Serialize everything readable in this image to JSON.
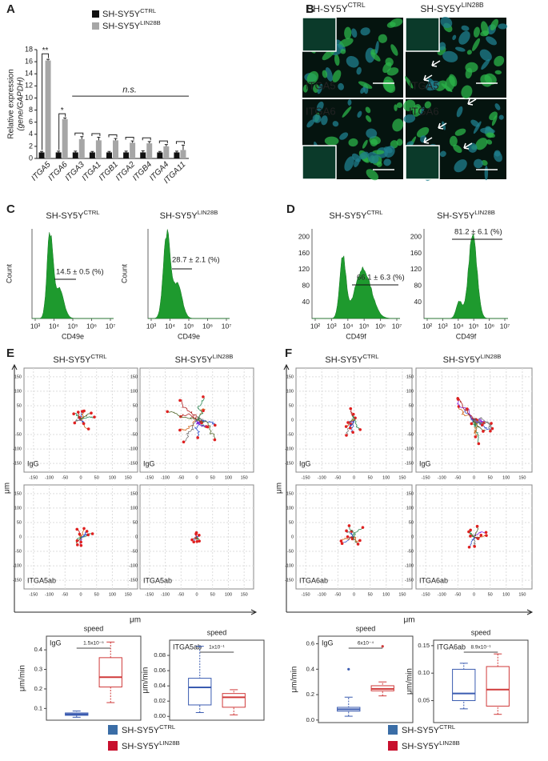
{
  "panel_labels": [
    "A",
    "B",
    "C",
    "D",
    "E",
    "F"
  ],
  "cell_lines": {
    "base": "SH-SY5Y",
    "ctrl": "CTRL",
    "lin": "LIN28B"
  },
  "panel_b": {
    "stains": [
      "ITGA5",
      "ITGA6"
    ]
  },
  "panel_c": {
    "ylabel": "Count",
    "xlabel": "CD49e",
    "xticks": [
      "10³",
      "10⁴",
      "10⁵",
      "10⁶",
      "10⁷"
    ],
    "percent": [
      "14.5 ± 0.5 (%)",
      "28.7 ± 2.1 (%)"
    ]
  },
  "panel_d": {
    "xlabel": "CD49f",
    "xticks": [
      "10²",
      "10³",
      "10⁴",
      "10⁵",
      "10⁶",
      "10⁷"
    ],
    "yticks": [
      40,
      80,
      120,
      160,
      200
    ],
    "percent": [
      "66.1 ± 6.3 (%)",
      "81.2 ± 6.1 (%)"
    ]
  },
  "tracks": {
    "axis_label": "μm",
    "ticks": [
      -150,
      -100,
      -50,
      0,
      50,
      100,
      150
    ],
    "treatments_e": [
      "IgG",
      "ITGA5ab"
    ],
    "treatments_f": [
      "IgG",
      "ITGA6ab"
    ]
  },
  "chart_data": [
    {
      "type": "bar",
      "ylabel": "Relative expression",
      "ylabel2": "(gene/GAPDH)",
      "categories": [
        "ITGA5",
        "ITGA6",
        "ITGA3",
        "ITGA1",
        "ITGB1",
        "ITGA2",
        "ITGB4",
        "ITGA4",
        "ITGA11"
      ],
      "series": [
        {
          "name": "SH-SY5Y",
          "superscript": "CTRL",
          "color": "#111111",
          "values": [
            1,
            1,
            1,
            1,
            1,
            1,
            1,
            1,
            1
          ],
          "errors": [
            0.15,
            0.2,
            0.2,
            0.15,
            0.15,
            0.2,
            0.25,
            0.15,
            0.2
          ]
        },
        {
          "name": "SH-SY5Y",
          "superscript": "LIN28B",
          "color": "#a6a6a6",
          "values": [
            16.2,
            6.5,
            3.2,
            3.0,
            3.0,
            2.6,
            2.5,
            2.0,
            1.4
          ],
          "errors": [
            0.2,
            0.2,
            0.4,
            0.5,
            0.3,
            0.3,
            0.3,
            0.3,
            0.8
          ]
        }
      ],
      "ylim": [
        0,
        18
      ],
      "yticks": [
        0,
        2,
        4,
        6,
        8,
        10,
        12,
        14,
        16,
        18
      ],
      "annotations": [
        "**",
        "*",
        "n.s."
      ]
    },
    {
      "type": "box",
      "title": "speed",
      "label": "IgG",
      "ylabel": "μm/min",
      "pvalue": "1.5x10⁻⁵",
      "ylim": [
        0.04,
        0.47
      ],
      "yticks": [
        0.1,
        0.2,
        0.3,
        0.4
      ],
      "series": [
        {
          "color": "#3a5bb0",
          "min": 0.055,
          "q1": 0.065,
          "median": 0.07,
          "q3": 0.077,
          "max": 0.087
        },
        {
          "color": "#d03a3a",
          "min": 0.13,
          "q1": 0.21,
          "median": 0.26,
          "q3": 0.36,
          "max": 0.44
        }
      ]
    },
    {
      "type": "box",
      "title": "speed",
      "label": "ITGA5ab",
      "ylabel": "μm/min",
      "pvalue": "1x10⁻¹",
      "ylim": [
        -0.005,
        0.1
      ],
      "yticks": [
        {
          "value": 0,
          "label": "0.00"
        },
        0.02,
        0.04,
        0.06,
        0.08
      ],
      "series": [
        {
          "color": "#3a5bb0",
          "min": 0.005,
          "q1": 0.015,
          "median": 0.038,
          "q3": 0.05,
          "max": 0.092
        },
        {
          "color": "#d03a3a",
          "min": 0.002,
          "q1": 0.012,
          "median": 0.025,
          "q3": 0.03,
          "max": 0.035
        }
      ]
    },
    {
      "type": "box",
      "title": "speed",
      "label": "IgG",
      "ylabel": "μm/min",
      "pvalue": "6x10⁻⁴",
      "ylim": [
        -0.02,
        0.66
      ],
      "yticks": [
        {
          "value": 0,
          "label": "0.0"
        },
        0.2,
        0.4,
        0.6
      ],
      "series": [
        {
          "color": "#3a5bb0",
          "min": 0.03,
          "q1": 0.07,
          "median": 0.085,
          "q3": 0.1,
          "max": 0.18,
          "outliers": [
            0.4
          ]
        },
        {
          "color": "#d03a3a",
          "min": 0.19,
          "q1": 0.23,
          "median": 0.245,
          "q3": 0.27,
          "max": 0.3,
          "outliers": [
            0.58
          ]
        }
      ]
    },
    {
      "type": "box",
      "title": "speed",
      "label": "ITGA6ab",
      "ylabel": "μm/min",
      "pvalue": "8.9x10⁻¹",
      "ylim": [
        0.01,
        0.16
      ],
      "yticks": [
        0.05,
        {
          "value": 0.1,
          "label": "0.10"
        },
        0.15
      ],
      "series": [
        {
          "color": "#3a5bb0",
          "min": 0.035,
          "q1": 0.05,
          "median": 0.063,
          "q3": 0.107,
          "max": 0.118
        },
        {
          "color": "#d03a3a",
          "min": 0.025,
          "q1": 0.04,
          "median": 0.07,
          "q3": 0.112,
          "max": 0.135
        }
      ]
    }
  ]
}
